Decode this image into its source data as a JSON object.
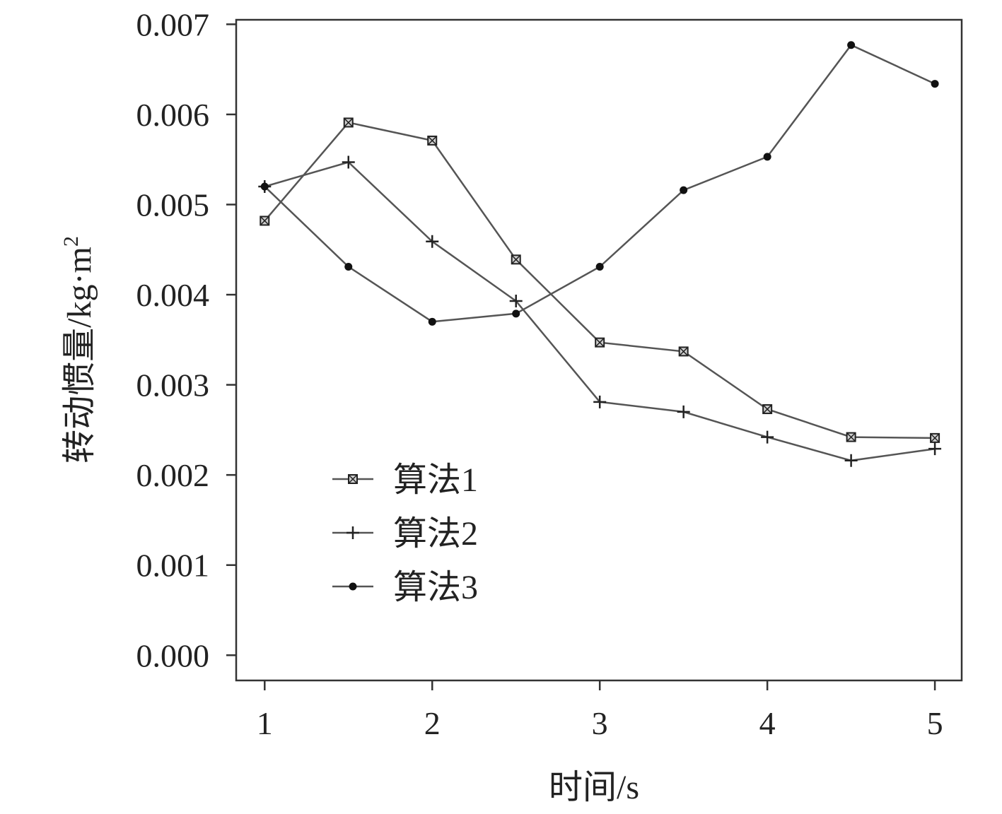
{
  "chart_data": {
    "type": "line",
    "xlabel": "时间/s",
    "ylabel": "转动惯量/kg·m",
    "ylabel_sup": "2",
    "xlim": [
      0.83,
      5.16
    ],
    "ylim": [
      -0.00028,
      0.00705
    ],
    "x_ticks": [
      "1",
      "2",
      "3",
      "4",
      "5"
    ],
    "y_ticks": [
      "0.000",
      "0.001",
      "0.002",
      "0.003",
      "0.004",
      "0.005",
      "0.006",
      "0.007"
    ],
    "x": [
      1,
      1.5,
      2,
      2.5,
      3,
      3.5,
      4,
      4.5,
      5
    ],
    "legend_position": "lower-left",
    "series": [
      {
        "name": "算法1",
        "marker": "square",
        "values": [
          0.00482,
          0.00591,
          0.00571,
          0.00439,
          0.00347,
          0.00337,
          0.00273,
          0.00242,
          0.00241
        ]
      },
      {
        "name": "算法2",
        "marker": "plus",
        "values": [
          0.0052,
          0.00547,
          0.00459,
          0.00393,
          0.00281,
          0.0027,
          0.00242,
          0.00216,
          0.00229
        ]
      },
      {
        "name": "算法3",
        "marker": "dot",
        "values": [
          0.0052,
          0.00431,
          0.0037,
          0.00379,
          0.00431,
          0.00516,
          0.00553,
          0.00677,
          0.00634
        ]
      }
    ]
  }
}
